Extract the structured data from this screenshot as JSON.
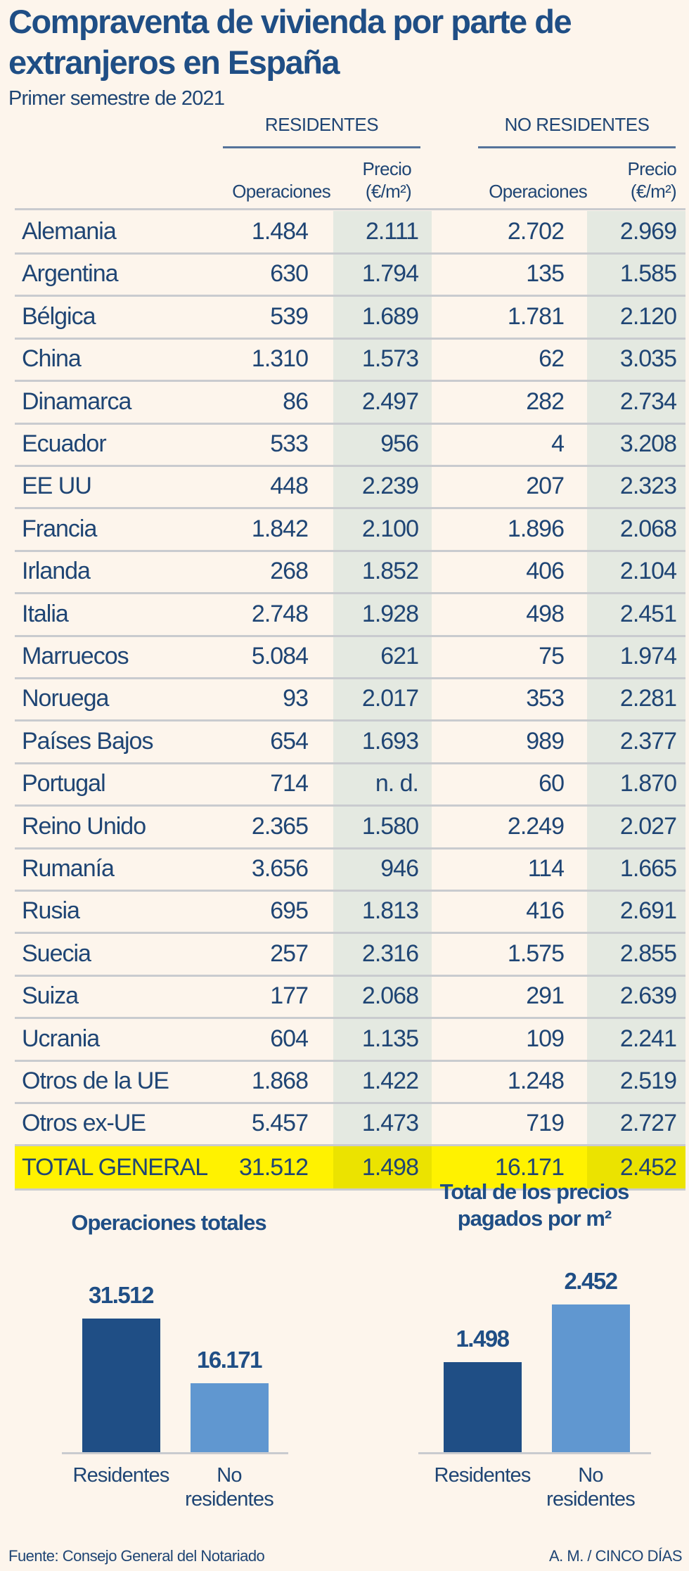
{
  "title": "Compraventa de vivienda por parte de extranjeros en España",
  "subtitle": "Primer semestre de 2021",
  "groups": [
    "RESIDENTES",
    "NO RESIDENTES"
  ],
  "columns": {
    "ops": "Operaciones",
    "precio_l1": "Precio",
    "precio_l2": "(€/m²)"
  },
  "rows": [
    [
      "Alemania",
      "1.484",
      "2.111",
      "2.702",
      "2.969"
    ],
    [
      "Argentina",
      "630",
      "1.794",
      "135",
      "1.585"
    ],
    [
      "Bélgica",
      "539",
      "1.689",
      "1.781",
      "2.120"
    ],
    [
      "China",
      "1.310",
      "1.573",
      "62",
      "3.035"
    ],
    [
      "Dinamarca",
      "86",
      "2.497",
      "282",
      "2.734"
    ],
    [
      "Ecuador",
      "533",
      "956",
      "4",
      "3.208"
    ],
    [
      "EE UU",
      "448",
      "2.239",
      "207",
      "2.323"
    ],
    [
      "Francia",
      "1.842",
      "2.100",
      "1.896",
      "2.068"
    ],
    [
      "Irlanda",
      "268",
      "1.852",
      "406",
      "2.104"
    ],
    [
      "Italia",
      "2.748",
      "1.928",
      "498",
      "2.451"
    ],
    [
      "Marruecos",
      "5.084",
      "621",
      "75",
      "1.974"
    ],
    [
      "Noruega",
      "93",
      "2.017",
      "353",
      "2.281"
    ],
    [
      "Países Bajos",
      "654",
      "1.693",
      "989",
      "2.377"
    ],
    [
      "Portugal",
      "714",
      "n. d.",
      "60",
      "1.870"
    ],
    [
      "Reino Unido",
      "2.365",
      "1.580",
      "2.249",
      "2.027"
    ],
    [
      "Rumanía",
      "3.656",
      "946",
      "114",
      "1.665"
    ],
    [
      "Rusia",
      "695",
      "1.813",
      "416",
      "2.691"
    ],
    [
      "Suecia",
      "257",
      "2.316",
      "1.575",
      "2.855"
    ],
    [
      "Suiza",
      "177",
      "2.068",
      "291",
      "2.639"
    ],
    [
      "Ucrania",
      "604",
      "1.135",
      "109",
      "2.241"
    ],
    [
      "Otros de la UE",
      "1.868",
      "1.422",
      "1.248",
      "2.519"
    ],
    [
      "Otros ex-UE",
      "5.457",
      "1.473",
      "719",
      "2.727"
    ]
  ],
  "total": [
    "TOTAL GENERAL",
    "31.512",
    "1.498",
    "16.171",
    "2.452"
  ],
  "colors": {
    "dark": "#1f4e85",
    "light": "#6097d0",
    "highlight": "#fff200",
    "shade": "#e4e9e1"
  },
  "chart_data": [
    {
      "type": "bar",
      "title": "Operaciones totales",
      "categories": [
        "Residentes",
        "No residentes"
      ],
      "values": [
        31512,
        16171
      ],
      "labels": [
        "31.512",
        "16.171"
      ]
    },
    {
      "type": "bar",
      "title": "Total de los precios pagados por m²",
      "title_lines": [
        "Total de los precios",
        "pagados por m²"
      ],
      "categories": [
        "Residentes",
        "No residentes"
      ],
      "values": [
        1498,
        2452
      ],
      "labels": [
        "1.498",
        "2.452"
      ]
    }
  ],
  "footer": {
    "source": "Fuente: Consejo General del Notariado",
    "credit": "A. M. / CINCO DÍAS"
  }
}
